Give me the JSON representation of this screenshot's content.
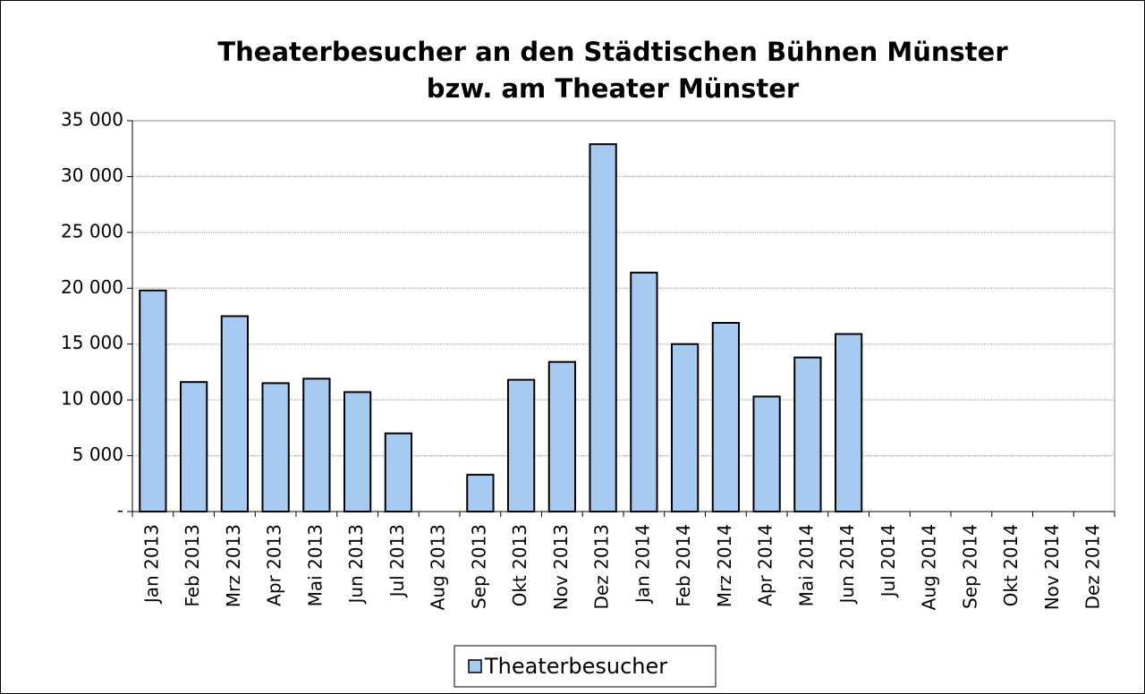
{
  "chart_data": {
    "type": "bar",
    "title": [
      "Theaterbesucher an den Städtischen Bühnen Münster",
      "bzw. am Theater Münster"
    ],
    "categories": [
      "Jan 2013",
      "Feb 2013",
      "Mrz 2013",
      "Apr 2013",
      "Mai 2013",
      "Jun 2013",
      "Jul 2013",
      "Aug 2013",
      "Sep 2013",
      "Okt 2013",
      "Nov 2013",
      "Dez 2013",
      "Jan 2014",
      "Feb 2014",
      "Mrz 2014",
      "Apr 2014",
      "Mai 2014",
      "Jun 2014",
      "Jul 2014",
      "Aug 2014",
      "Sep 2014",
      "Okt 2014",
      "Nov 2014",
      "Dez 2014"
    ],
    "series": [
      {
        "name": "Theaterbesucher",
        "color": "#a6caf0",
        "values": [
          19800,
          11600,
          17500,
          11500,
          11900,
          10700,
          7000,
          null,
          3300,
          11800,
          13400,
          32900,
          21400,
          15000,
          16900,
          10300,
          13800,
          15900,
          null,
          null,
          null,
          null,
          null,
          null
        ]
      }
    ],
    "ylim": [
      0,
      35000
    ],
    "yticks": [
      {
        "value": 0,
        "label": "-"
      },
      {
        "value": 5000,
        "label": "5 000"
      },
      {
        "value": 10000,
        "label": "10 000"
      },
      {
        "value": 15000,
        "label": "15 000"
      },
      {
        "value": 20000,
        "label": "20 000"
      },
      {
        "value": 25000,
        "label": "25 000"
      },
      {
        "value": 30000,
        "label": "30 000"
      },
      {
        "value": 35000,
        "label": "35 000"
      }
    ],
    "grid": true,
    "legend": "bottom"
  }
}
